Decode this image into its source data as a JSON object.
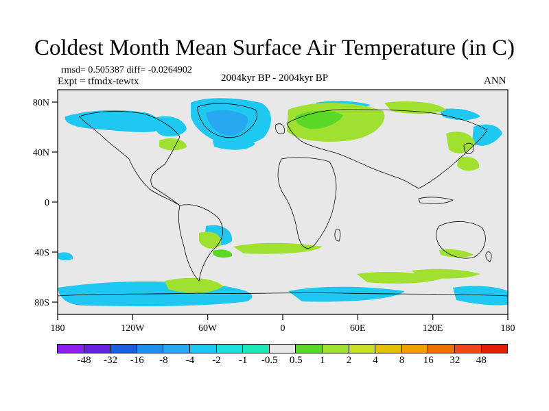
{
  "title": "Coldest Month Mean Surface Air Temperature (in C)",
  "stats": {
    "rmsd_line": "rmsd= 0.505387 diff= -0.0264902",
    "expt_line": "Expt = tfmdx-tewtx",
    "period": "2004kyr BP - 2004kyr BP",
    "season": "ANN"
  },
  "axes": {
    "x_ticks": [
      "180",
      "120W",
      "60W",
      "0",
      "60E",
      "120E",
      "180"
    ],
    "y_ticks": [
      "80N",
      "40N",
      "0",
      "40S",
      "80S"
    ]
  },
  "colorbar": {
    "colors": [
      "#8f1ff0",
      "#6a1fe0",
      "#1c5fe0",
      "#1f8ff0",
      "#28a8f0",
      "#1cc8f0",
      "#1ce0e0",
      "#1ce8b8",
      "#e8e8e8",
      "#5ad828",
      "#a0e030",
      "#c8e028",
      "#e0c000",
      "#f0a000",
      "#f07000",
      "#f04818",
      "#e02000"
    ],
    "labels": [
      "-48",
      "-32",
      "-16",
      "-8",
      "-4",
      "-2",
      "-1",
      "-0.5",
      "0.5",
      "1",
      "2",
      "4",
      "8",
      "16",
      "32",
      "48"
    ]
  },
  "colors": {
    "background": "#e8e8e8",
    "coastline": "#000000"
  }
}
